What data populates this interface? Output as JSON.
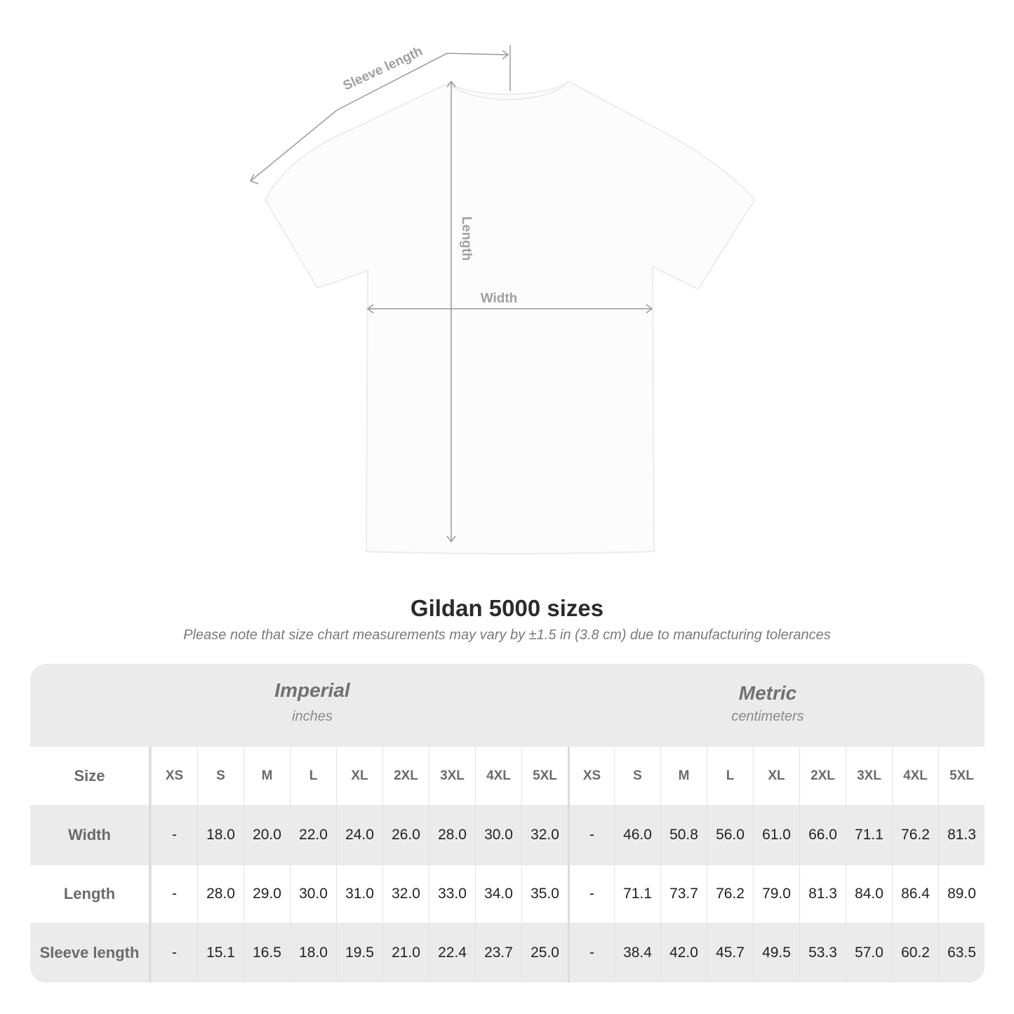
{
  "diagram": {
    "labels": {
      "sleeve": "Sleeve length",
      "length": "Length",
      "width": "Width"
    }
  },
  "title": "Gildan 5000 sizes",
  "note": "Please note that size chart measurements may vary by ±1.5 in (3.8 cm) due to manufacturing tolerances",
  "table": {
    "imperial": {
      "name": "Imperial",
      "unit": "inches"
    },
    "metric": {
      "name": "Metric",
      "unit": "centimeters"
    },
    "size_label": "Size",
    "sizes": [
      "XS",
      "S",
      "M",
      "L",
      "XL",
      "2XL",
      "3XL",
      "4XL",
      "5XL"
    ],
    "rows": [
      {
        "label": "Width",
        "imperial": [
          "-",
          "18.0",
          "20.0",
          "22.0",
          "24.0",
          "26.0",
          "28.0",
          "30.0",
          "32.0"
        ],
        "metric": [
          "-",
          "46.0",
          "50.8",
          "56.0",
          "61.0",
          "66.0",
          "71.1",
          "76.2",
          "81.3"
        ]
      },
      {
        "label": "Length",
        "imperial": [
          "-",
          "28.0",
          "29.0",
          "30.0",
          "31.0",
          "32.0",
          "33.0",
          "34.0",
          "35.0"
        ],
        "metric": [
          "-",
          "71.1",
          "73.7",
          "76.2",
          "79.0",
          "81.3",
          "84.0",
          "86.4",
          "89.0"
        ]
      },
      {
        "label": "Sleeve length",
        "imperial": [
          "-",
          "15.1",
          "16.5",
          "18.0",
          "19.5",
          "21.0",
          "22.4",
          "23.7",
          "25.0"
        ],
        "metric": [
          "-",
          "38.4",
          "42.0",
          "45.7",
          "49.5",
          "53.3",
          "57.0",
          "60.2",
          "63.5"
        ]
      }
    ]
  }
}
